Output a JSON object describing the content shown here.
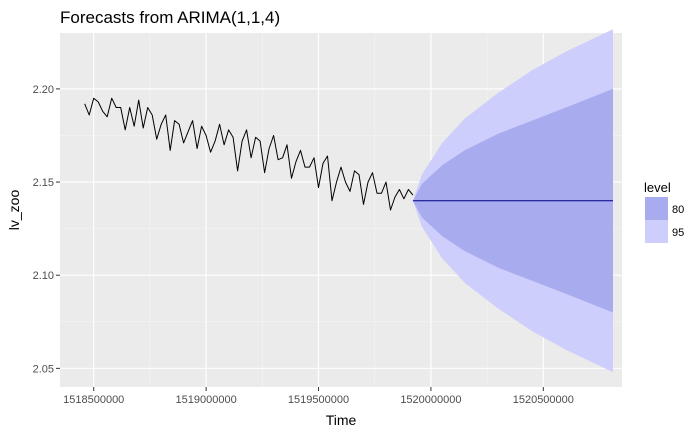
{
  "chart_data": {
    "type": "line",
    "title": "Forecasts from ARIMA(1,1,4)",
    "xlabel": "Time",
    "ylabel": "lv_zoo",
    "xlim": [
      1518350000,
      1520850000
    ],
    "ylim": [
      2.04,
      2.23
    ],
    "x_ticks": [
      1518500000,
      1519000000,
      1519500000,
      1520000000,
      1520500000
    ],
    "x_tick_labels": [
      "1518500000",
      "1519000000",
      "1519500000",
      "1520000000",
      "1520500000"
    ],
    "y_ticks": [
      2.05,
      2.1,
      2.15,
      2.2
    ],
    "y_tick_labels": [
      "2.05",
      "2.10",
      "2.15",
      "2.20"
    ],
    "grid": true,
    "legend_position": "right",
    "legend": {
      "title": "level",
      "entries": [
        {
          "label": "80",
          "color": "#a9abef"
        },
        {
          "label": "95",
          "color": "#cdcefb"
        }
      ]
    },
    "series": [
      {
        "kind": "observed",
        "color": "#000000",
        "x": [
          1518460000,
          1518480000,
          1518500000,
          1518520000,
          1518540000,
          1518560000,
          1518580000,
          1518600000,
          1518620000,
          1518640000,
          1518660000,
          1518680000,
          1518700000,
          1518720000,
          1518740000,
          1518760000,
          1518780000,
          1518800000,
          1518820000,
          1518840000,
          1518860000,
          1518880000,
          1518900000,
          1518920000,
          1518940000,
          1518960000,
          1518980000,
          1519000000,
          1519020000,
          1519040000,
          1519060000,
          1519080000,
          1519100000,
          1519120000,
          1519140000,
          1519160000,
          1519180000,
          1519200000,
          1519220000,
          1519240000,
          1519260000,
          1519280000,
          1519300000,
          1519320000,
          1519340000,
          1519360000,
          1519380000,
          1519400000,
          1519420000,
          1519440000,
          1519460000,
          1519480000,
          1519500000,
          1519520000,
          1519540000,
          1519560000,
          1519580000,
          1519600000,
          1519620000,
          1519640000,
          1519660000,
          1519680000,
          1519700000,
          1519720000,
          1519740000,
          1519760000,
          1519780000,
          1519800000,
          1519820000,
          1519840000,
          1519860000,
          1519880000,
          1519900000,
          1519920000
        ],
        "y": [
          2.192,
          2.186,
          2.195,
          2.193,
          2.188,
          2.185,
          2.195,
          2.19,
          2.19,
          2.178,
          2.19,
          2.18,
          2.194,
          2.179,
          2.19,
          2.186,
          2.173,
          2.181,
          2.186,
          2.167,
          2.183,
          2.181,
          2.171,
          2.177,
          2.183,
          2.168,
          2.18,
          2.175,
          2.166,
          2.172,
          2.181,
          2.17,
          2.178,
          2.174,
          2.156,
          2.172,
          2.178,
          2.163,
          2.174,
          2.172,
          2.155,
          2.168,
          2.175,
          2.162,
          2.163,
          2.17,
          2.152,
          2.161,
          2.167,
          2.158,
          2.158,
          2.163,
          2.147,
          2.16,
          2.164,
          2.14,
          2.15,
          2.158,
          2.15,
          2.145,
          2.156,
          2.154,
          2.138,
          2.15,
          2.155,
          2.144,
          2.144,
          2.15,
          2.135,
          2.142,
          2.146,
          2.141,
          2.146,
          2.143
        ]
      },
      {
        "kind": "forecast",
        "color": "#00008b",
        "x": [
          1519920000,
          1520810000
        ],
        "y": [
          2.14,
          2.14
        ]
      }
    ],
    "forecast_band": {
      "x": [
        1519920000,
        1519960000,
        1520050000,
        1520150000,
        1520300000,
        1520450000,
        1520600000,
        1520810000
      ],
      "lo80": [
        2.14,
        2.131,
        2.121,
        2.113,
        2.104,
        2.097,
        2.09,
        2.08
      ],
      "hi80": [
        2.14,
        2.149,
        2.159,
        2.167,
        2.176,
        2.183,
        2.19,
        2.2
      ],
      "lo95": [
        2.14,
        2.126,
        2.109,
        2.096,
        2.082,
        2.07,
        2.06,
        2.048
      ],
      "hi95": [
        2.14,
        2.154,
        2.171,
        2.184,
        2.198,
        2.21,
        2.22,
        2.232
      ]
    }
  }
}
